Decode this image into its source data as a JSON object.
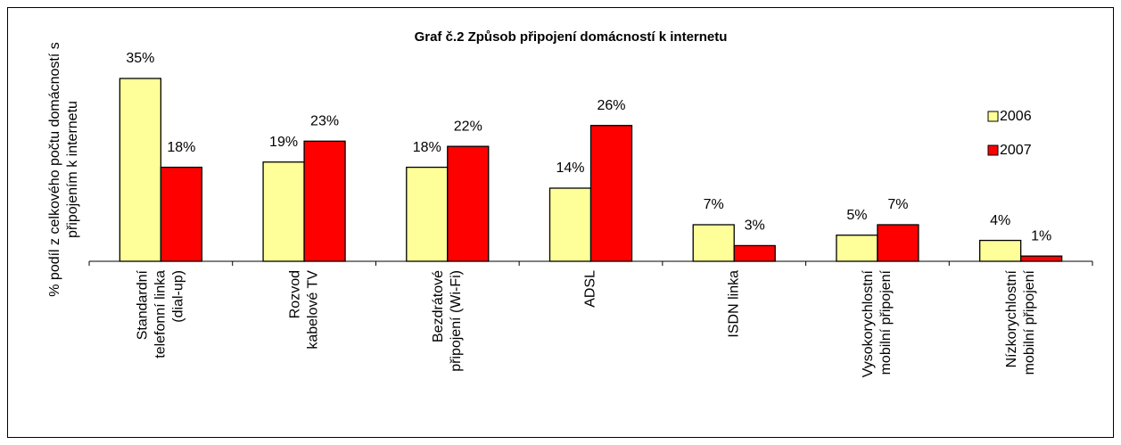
{
  "chart_data": {
    "type": "bar",
    "title": "Graf č.2  Způsob připojení domácností k internetu",
    "y_label": [
      "% podíl z celkového počtu domácností s",
      "připojením k internetu"
    ],
    "categories": [
      [
        "Standardní",
        "telefonní linka",
        "(dial-up)"
      ],
      [
        "Rozvod",
        "kabelové TV"
      ],
      [
        "Bezdrátové",
        "připojení (Wi-Fi)"
      ],
      [
        "ADSL"
      ],
      [
        "ISDN linka"
      ],
      [
        "Vysokorychlostní",
        "mobilní připojení"
      ],
      [
        "Nízkorychlostní",
        "mobilní připojení"
      ]
    ],
    "series": [
      {
        "name": "2006",
        "color": "#ffff99",
        "values": [
          35,
          19,
          18,
          14,
          7,
          5,
          4
        ],
        "value_labels": [
          "35%",
          "19%",
          "18%",
          "14%",
          "7%",
          "5%",
          "4%"
        ]
      },
      {
        "name": "2007",
        "color": "#ff0000",
        "values": [
          18,
          23,
          22,
          26,
          3,
          7,
          1
        ],
        "value_labels": [
          "18%",
          "23%",
          "22%",
          "26%",
          "3%",
          "7%",
          "1%"
        ]
      }
    ],
    "ylim": [
      0,
      35
    ],
    "legend": "right"
  }
}
